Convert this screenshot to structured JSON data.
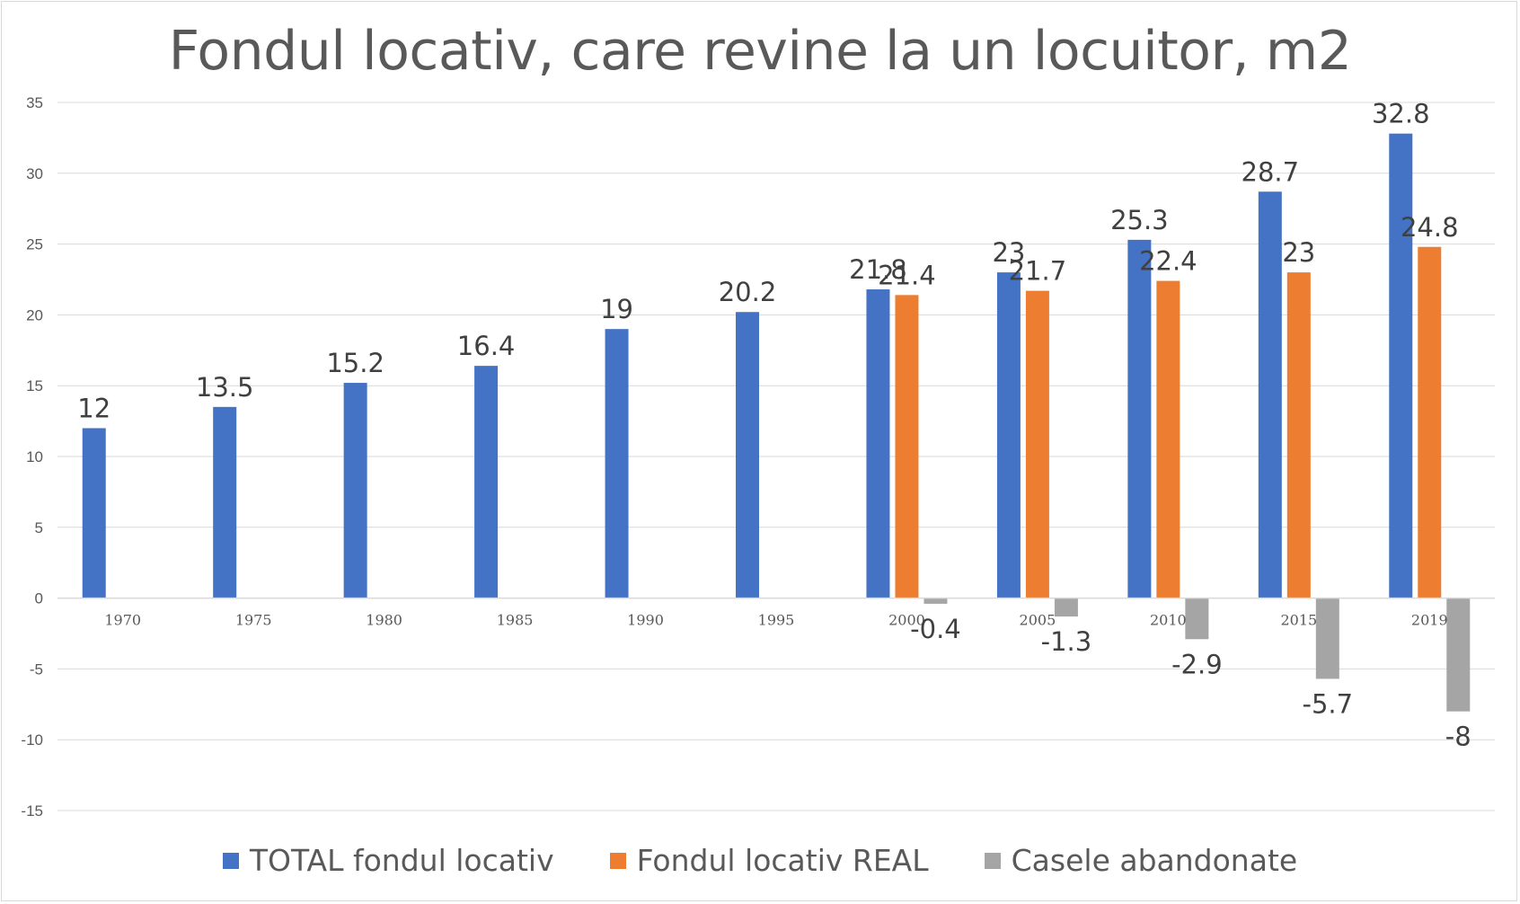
{
  "chart_data": {
    "type": "bar",
    "title": "Fondul locativ, care revine la un locuitor, m2",
    "categories": [
      "1970",
      "1975",
      "1980",
      "1985",
      "1990",
      "1995",
      "2000",
      "2005",
      "2010",
      "2015",
      "2019"
    ],
    "series": [
      {
        "name": "TOTAL fondul locativ",
        "color": "#4472c4",
        "values": [
          12,
          13.5,
          15.2,
          16.4,
          19,
          20.2,
          21.8,
          23,
          25.3,
          28.7,
          32.8
        ]
      },
      {
        "name": "Fondul locativ REAL",
        "color": "#ed7d31",
        "values": [
          null,
          null,
          null,
          null,
          null,
          null,
          21.4,
          21.7,
          22.4,
          23,
          24.8
        ]
      },
      {
        "name": "Casele abandonate",
        "color": "#a5a5a5",
        "values": [
          null,
          null,
          null,
          null,
          null,
          null,
          -0.4,
          -1.3,
          -2.9,
          -5.7,
          -8
        ]
      }
    ],
    "ylim": [
      -15,
      35
    ],
    "yticks": [
      35,
      30,
      25,
      20,
      15,
      10,
      5,
      0,
      -5,
      -10,
      -15
    ],
    "grid": true,
    "legend_position": "bottom",
    "xlabel": "",
    "ylabel": ""
  }
}
